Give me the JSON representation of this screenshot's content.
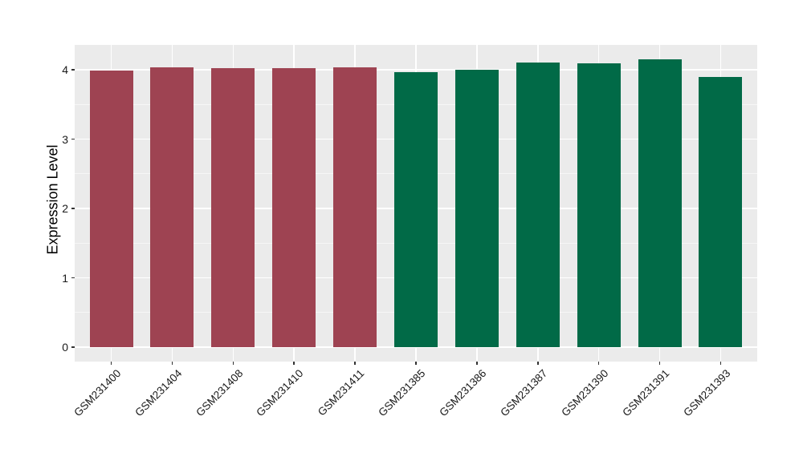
{
  "chart_data": {
    "type": "bar",
    "title": "",
    "xlabel": "",
    "ylabel": "Expression Level",
    "categories": [
      "GSM231400",
      "GSM231404",
      "GSM231408",
      "GSM231410",
      "GSM231411",
      "GSM231385",
      "GSM231386",
      "GSM231387",
      "GSM231390",
      "GSM231391",
      "GSM231393"
    ],
    "values": [
      3.99,
      4.03,
      4.02,
      4.02,
      4.03,
      3.96,
      4.0,
      4.1,
      4.09,
      4.15,
      3.9
    ],
    "bar_colors": [
      "#9E4352",
      "#9E4352",
      "#9E4352",
      "#9E4352",
      "#9E4352",
      "#016A47",
      "#016A47",
      "#016A47",
      "#016A47",
      "#016A47",
      "#016A47"
    ],
    "group_colors": {
      "left_group": "#9E4352",
      "right_group": "#016A47"
    },
    "yticks": [
      "0",
      "1",
      "2",
      "3",
      "4"
    ],
    "ytick_values": [
      0,
      1,
      2,
      3,
      4
    ],
    "minor_ytick_values": [
      0.5,
      1.5,
      2.5,
      3.5
    ],
    "ylim": [
      0,
      4.36
    ],
    "grid": true,
    "legend": "none",
    "panel_bg": "#EBEBEB",
    "grid_color": "#FFFFFF",
    "tick_color": "#333333"
  }
}
